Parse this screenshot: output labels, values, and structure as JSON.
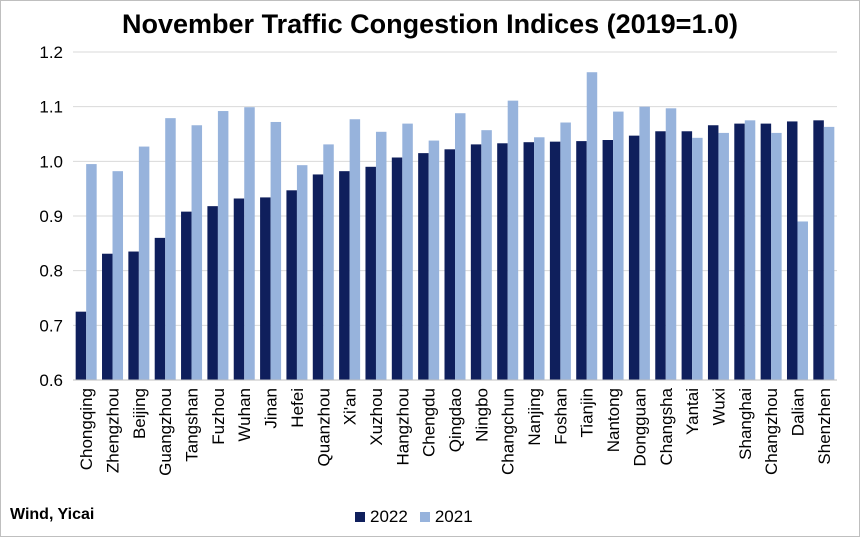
{
  "title": "November Traffic Congestion Indices (2019=1.0)",
  "source": "Wind, Yicai",
  "colors": {
    "series_2022": "#0f1f5c",
    "series_2021": "#97b3dc",
    "grid": "#d9d9d9",
    "axis": "#bfbfbf"
  },
  "chart_data": {
    "type": "bar",
    "title": "November Traffic Congestion Indices (2019=1.0)",
    "xlabel": "",
    "ylabel": "",
    "ylim": [
      0.6,
      1.2
    ],
    "yticks": [
      "0.6",
      "0.7",
      "0.8",
      "0.9",
      "1.0",
      "1.1",
      "1.2"
    ],
    "grid": true,
    "legend": "bottom-center",
    "categories": [
      "Chongqing",
      "Zhengzhou",
      "Beijing",
      "Guangzhou",
      "Tangshan",
      "Fuzhou",
      "Wuhan",
      "Jinan",
      "Hefei",
      "Quanzhou",
      "Xi'an",
      "Xuzhou",
      "Hangzhou",
      "Chengdu",
      "Qingdao",
      "Ningbo",
      "Changchun",
      "Nanjing",
      "Foshan",
      "Tianjin",
      "Nantong",
      "Dongguan",
      "Changsha",
      "Yantai",
      "Wuxi",
      "Shanghai",
      "Changzhou",
      "Dalian",
      "Shenzhen"
    ],
    "series": [
      {
        "name": "2022",
        "values": [
          0.725,
          0.831,
          0.835,
          0.86,
          0.908,
          0.918,
          0.932,
          0.934,
          0.947,
          0.976,
          0.982,
          0.99,
          1.007,
          1.015,
          1.022,
          1.031,
          1.033,
          1.035,
          1.036,
          1.037,
          1.039,
          1.047,
          1.055,
          1.055,
          1.066,
          1.069,
          1.069,
          1.073,
          1.075
        ]
      },
      {
        "name": "2021",
        "values": [
          0.995,
          0.982,
          1.027,
          1.079,
          1.066,
          1.092,
          1.099,
          1.072,
          0.993,
          1.031,
          1.077,
          1.054,
          1.069,
          1.038,
          1.088,
          1.057,
          1.111,
          1.044,
          1.071,
          1.163,
          1.091,
          1.1,
          1.097,
          1.043,
          1.052,
          1.075,
          1.052,
          0.89,
          1.063
        ]
      }
    ]
  }
}
